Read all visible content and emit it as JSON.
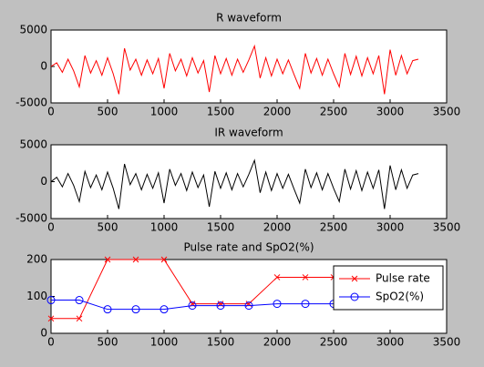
{
  "chart_data": [
    {
      "type": "line",
      "title": "R waveform",
      "x": [
        0,
        50,
        100,
        150,
        200,
        250,
        300,
        350,
        400,
        450,
        500,
        550,
        600,
        650,
        700,
        750,
        800,
        850,
        900,
        950,
        1000,
        1050,
        1100,
        1150,
        1200,
        1250,
        1300,
        1350,
        1400,
        1450,
        1500,
        1550,
        1600,
        1650,
        1700,
        1750,
        1800,
        1850,
        1900,
        1950,
        2000,
        2050,
        2100,
        2150,
        2200,
        2250,
        2300,
        2350,
        2400,
        2450,
        2500,
        2550,
        2600,
        2650,
        2700,
        2750,
        2800,
        2850,
        2900,
        2950,
        3000,
        3050,
        3100,
        3150,
        3200,
        3250
      ],
      "series": [
        {
          "name": "R",
          "color": "#ff0000",
          "values": [
            0,
            500,
            -800,
            1000,
            -600,
            -2800,
            1500,
            -900,
            800,
            -1200,
            1200,
            -1000,
            -3800,
            2500,
            -500,
            1000,
            -1200,
            900,
            -1000,
            1100,
            -3000,
            1800,
            -600,
            1000,
            -1300,
            1200,
            -900,
            800,
            -3500,
            1500,
            -1000,
            1100,
            -1200,
            1000,
            -800,
            900,
            2800,
            -1600,
            1200,
            -1300,
            1000,
            -1000,
            900,
            -1100,
            -3000,
            1800,
            -900,
            1100,
            -1200,
            1000,
            -1000,
            -2800,
            1800,
            -1100,
            1400,
            -1300,
            1200,
            -1000,
            1500,
            -3800,
            2300,
            -1200,
            1500,
            -1000,
            800,
            1000
          ]
        }
      ],
      "xlim": [
        0,
        3500
      ],
      "xticks": [
        0,
        500,
        1000,
        1500,
        2000,
        2500,
        3000,
        3500
      ],
      "ylim": [
        -5000,
        5000
      ],
      "yticks": [
        -5000,
        0,
        5000
      ],
      "grid": false
    },
    {
      "type": "line",
      "title": "IR waveform",
      "x": [
        0,
        50,
        100,
        150,
        200,
        250,
        300,
        350,
        400,
        450,
        500,
        550,
        600,
        650,
        700,
        750,
        800,
        850,
        900,
        950,
        1000,
        1050,
        1100,
        1150,
        1200,
        1250,
        1300,
        1350,
        1400,
        1450,
        1500,
        1550,
        1600,
        1650,
        1700,
        1750,
        1800,
        1850,
        1900,
        1950,
        2000,
        2050,
        2100,
        2150,
        2200,
        2250,
        2300,
        2350,
        2400,
        2450,
        2500,
        2550,
        2600,
        2650,
        2700,
        2750,
        2800,
        2850,
        2900,
        2950,
        3000,
        3050,
        3100,
        3150,
        3200,
        3250
      ],
      "series": [
        {
          "name": "IR",
          "color": "#000000",
          "values": [
            0,
            600,
            -700,
            1100,
            -500,
            -2700,
            1400,
            -800,
            900,
            -1100,
            1300,
            -900,
            -3700,
            2400,
            -400,
            1100,
            -1100,
            1000,
            -900,
            1200,
            -2900,
            1700,
            -500,
            1100,
            -1200,
            1300,
            -800,
            900,
            -3400,
            1400,
            -900,
            1200,
            -1100,
            1100,
            -700,
            1000,
            2900,
            -1500,
            1300,
            -1200,
            1100,
            -900,
            1000,
            -1000,
            -2900,
            1700,
            -800,
            1200,
            -1100,
            1100,
            -900,
            -2700,
            1700,
            -1000,
            1500,
            -1200,
            1300,
            -900,
            1600,
            -3700,
            2200,
            -1100,
            1600,
            -900,
            900,
            1100
          ]
        }
      ],
      "xlim": [
        0,
        3500
      ],
      "xticks": [
        0,
        500,
        1000,
        1500,
        2000,
        2500,
        3000,
        3500
      ],
      "ylim": [
        -5000,
        5000
      ],
      "yticks": [
        -5000,
        0,
        5000
      ],
      "grid": false
    },
    {
      "type": "line",
      "title": "Pulse rate and SpO2(%)",
      "x": [
        0,
        250,
        500,
        750,
        1000,
        1250,
        1500,
        1750,
        2000,
        2250,
        2500
      ],
      "series": [
        {
          "name": "Pulse rate",
          "color": "#ff0000",
          "marker": "x",
          "values": [
            40,
            40,
            200,
            200,
            200,
            80,
            80,
            80,
            152,
            152,
            152
          ]
        },
        {
          "name": "SpO2(%)",
          "color": "#0000ff",
          "marker": "o",
          "values": [
            90,
            90,
            65,
            65,
            65,
            75,
            75,
            75,
            80,
            80,
            80
          ]
        }
      ],
      "xlim": [
        0,
        3500
      ],
      "xticks": [
        0,
        500,
        1000,
        1500,
        2000,
        2500,
        3000,
        3500
      ],
      "ylim": [
        0,
        200
      ],
      "yticks": [
        0,
        100,
        200
      ],
      "grid": false,
      "legend": "northeast"
    }
  ]
}
